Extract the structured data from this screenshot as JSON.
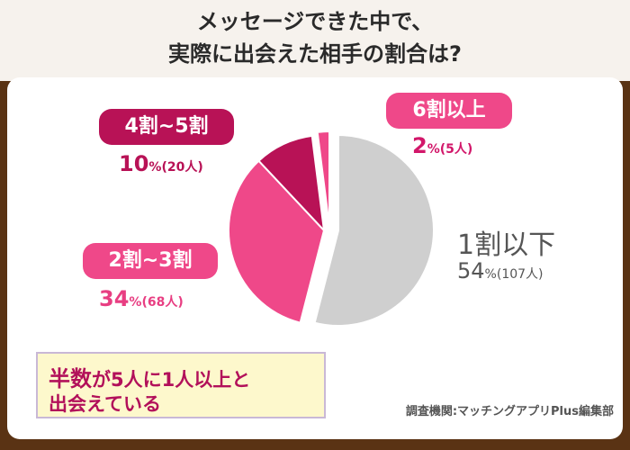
{
  "title_line1": "メッセージできた中で、",
  "title_line2": "実際に出会えた相手の割合は?",
  "chart_data": {
    "type": "pie",
    "title": "メッセージできた中で、実際に出会えた相手の割合は?",
    "slices": [
      {
        "label": "1割以下",
        "percent": 54,
        "count": "(107人)",
        "color": "#cfcfcf"
      },
      {
        "label": "2割~3割",
        "percent": 34,
        "count": "(68人)",
        "color": "#ef4889"
      },
      {
        "label": "4割~5割",
        "percent": 10,
        "count": "(20人)",
        "color": "#b81256"
      },
      {
        "label": "6割以上",
        "percent": 2,
        "count": "(5人)",
        "color": "#ef4889"
      }
    ]
  },
  "labels": {
    "s1_label": "1割以下",
    "s1_pct": "54",
    "s1_cnt": "(107人)",
    "s2_label": "2割~3割",
    "s2_pct": "34",
    "s2_cnt": "(68人)",
    "s3_label": "4割~5割",
    "s3_pct": "10",
    "s3_cnt": "(20人)",
    "s4_label": "6割以上",
    "s4_pct": "2",
    "s4_cnt": "(5人)",
    "pct_sign": "%"
  },
  "note": {
    "line1_a": "半数",
    "line1_b": "が5人に1人以上と",
    "line2": "出会えている"
  },
  "source": "調査機関:マッチングアプリPlus編集部"
}
